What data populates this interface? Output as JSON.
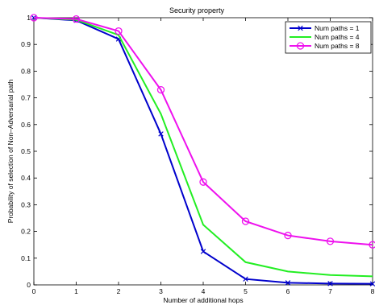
{
  "chart_data": {
    "type": "line",
    "title": "Security property",
    "xlabel": "Number of additional hops",
    "ylabel": "Probability of selection of Non–Adversarial path",
    "x": [
      0,
      1,
      2,
      3,
      4,
      5,
      6,
      7,
      8
    ],
    "xlim": [
      0,
      8
    ],
    "ylim": [
      0,
      1
    ],
    "x_ticks": [
      "0",
      "1",
      "2",
      "3",
      "4",
      "5",
      "6",
      "7",
      "8"
    ],
    "y_ticks": [
      "0",
      "0.1",
      "0.2",
      "0.3",
      "0.4",
      "0.5",
      "0.6",
      "0.7",
      "0.8",
      "0.9",
      "1"
    ],
    "grid": false,
    "legend_position": "top-right",
    "series": [
      {
        "name": "Num paths = 1",
        "color": "#0000cc",
        "marker": "x",
        "values": [
          1.0,
          0.99,
          0.92,
          0.565,
          0.125,
          0.022,
          0.008,
          0.005,
          0.004
        ]
      },
      {
        "name": "Num paths = 4",
        "color": "#22ee22",
        "marker": "none",
        "values": [
          1.0,
          0.992,
          0.935,
          0.64,
          0.225,
          0.085,
          0.05,
          0.037,
          0.032
        ]
      },
      {
        "name": "Num paths = 8",
        "color": "#ee11ee",
        "marker": "o",
        "values": [
          1.0,
          0.995,
          0.95,
          0.73,
          0.385,
          0.238,
          0.185,
          0.163,
          0.15
        ]
      }
    ]
  }
}
